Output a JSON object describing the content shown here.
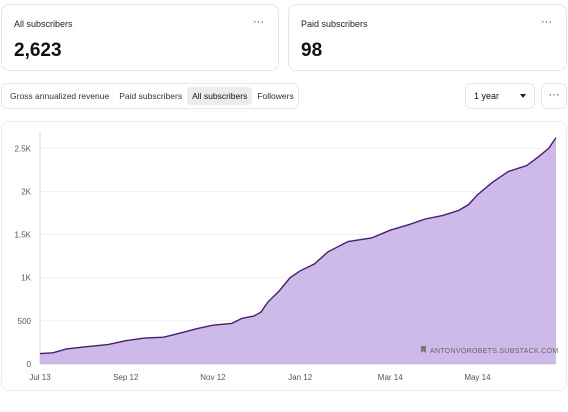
{
  "stats": [
    {
      "label": "All subscribers",
      "value": "2,623"
    },
    {
      "label": "Paid subscribers",
      "value": "98"
    }
  ],
  "more_glyph": "···",
  "tabs": [
    {
      "label": "Gross annualized revenue",
      "active": false
    },
    {
      "label": "Paid subscribers",
      "active": false
    },
    {
      "label": "All subscribers",
      "active": true
    },
    {
      "label": "Followers",
      "active": false
    }
  ],
  "range_select": {
    "value": "1 year"
  },
  "watermark": "ANTONVOROBETS.SUBSTACK.COM",
  "chart_data": {
    "type": "area",
    "title": "",
    "xlabel": "",
    "ylabel": "",
    "x_ticks": [
      "Jul 13",
      "Sep 12",
      "Nov 12",
      "Jan 12",
      "Mar 14",
      "May 14"
    ],
    "y_ticks": [
      "0",
      "500",
      "1K",
      "1.5K",
      "2K",
      "2.5K"
    ],
    "ylim": [
      0,
      2700
    ],
    "grid": true,
    "series_color": "#4a1d6e",
    "fill_color": "#c9b3e6",
    "series": [
      {
        "points": [
          [
            "Jul 13",
            120
          ],
          [
            "Jul 22",
            130
          ],
          [
            "Aug 1",
            175
          ],
          [
            "Aug 15",
            200
          ],
          [
            "Aug 30",
            225
          ],
          [
            "Sep 12",
            270
          ],
          [
            "Sep 25",
            300
          ],
          [
            "Oct 8",
            310
          ],
          [
            "Oct 20",
            360
          ],
          [
            "Nov 1",
            410
          ],
          [
            "Nov 12",
            450
          ],
          [
            "Nov 25",
            470
          ],
          [
            "Dec 2",
            530
          ],
          [
            "Dec 10",
            555
          ],
          [
            "Dec 15",
            600
          ],
          [
            "Dec 20",
            720
          ],
          [
            "Dec 28",
            850
          ],
          [
            "Jan 5",
            1000
          ],
          [
            "Jan 12",
            1080
          ],
          [
            "Jan 22",
            1160
          ],
          [
            "Feb 1",
            1300
          ],
          [
            "Feb 15",
            1420
          ],
          [
            "Mar 1",
            1460
          ],
          [
            "Mar 14",
            1550
          ],
          [
            "Mar 28",
            1620
          ],
          [
            "Apr 8",
            1680
          ],
          [
            "Apr 20",
            1720
          ],
          [
            "May 1",
            1780
          ],
          [
            "May 8",
            1850
          ],
          [
            "May 14",
            1960
          ],
          [
            "May 24",
            2100
          ],
          [
            "Jun 5",
            2230
          ],
          [
            "Jun 18",
            2300
          ],
          [
            "Jun 26",
            2400
          ],
          [
            "Jul 3",
            2500
          ],
          [
            "Jul 8",
            2623
          ]
        ]
      }
    ]
  }
}
